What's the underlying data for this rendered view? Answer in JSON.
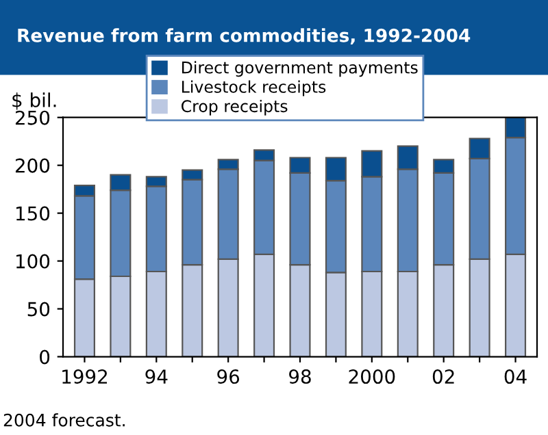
{
  "chart_data": {
    "type": "bar",
    "title": "Revenue from farm commodities, 1992-2004",
    "ylabel": "$ bil.",
    "categories": [
      "1992",
      null,
      "94",
      null,
      "96",
      null,
      "98",
      null,
      "2000",
      null,
      "02",
      null,
      "04"
    ],
    "stacked": true,
    "series": [
      {
        "name": "Crop receipts",
        "color": "#bcc8e2",
        "values": [
          81,
          84,
          89,
          96,
          102,
          107,
          96,
          88,
          89,
          89,
          96,
          102,
          107
        ]
      },
      {
        "name": "Livestock receipts",
        "color": "#5b86bb",
        "values": [
          87,
          90,
          89,
          89,
          94,
          98,
          96,
          96,
          99,
          107,
          96,
          105,
          122
        ]
      },
      {
        "name": "Direct government payments",
        "color": "#0a4f8f",
        "values": [
          11,
          16,
          10,
          10,
          10,
          11,
          16,
          24,
          27,
          24,
          14,
          21,
          21
        ]
      }
    ],
    "ylim": [
      0,
      250
    ],
    "yticks": [
      0,
      50,
      100,
      150,
      200,
      250
    ],
    "grid": false,
    "legend": "top",
    "annotations": [
      "2004 forecast."
    ]
  }
}
